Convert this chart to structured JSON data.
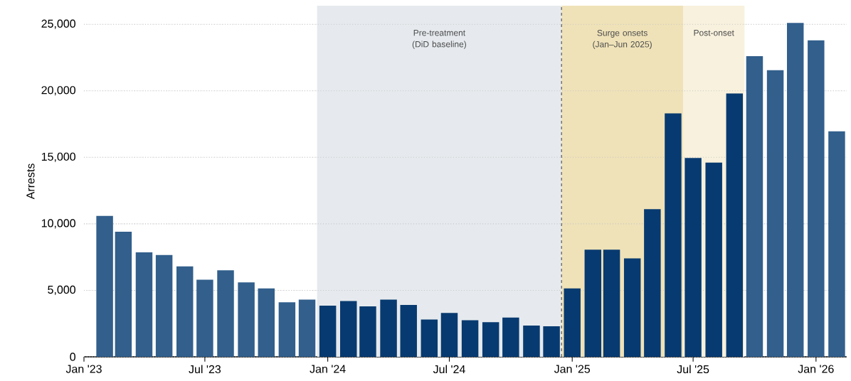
{
  "chart_data": {
    "type": "bar",
    "ylabel": "Arrests",
    "x": [
      "2023-02",
      "2023-03",
      "2023-04",
      "2023-05",
      "2023-06",
      "2023-07",
      "2023-08",
      "2023-09",
      "2023-10",
      "2023-11",
      "2023-12",
      "2024-01",
      "2024-02",
      "2024-03",
      "2024-04",
      "2024-05",
      "2024-06",
      "2024-07",
      "2024-08",
      "2024-09",
      "2024-10",
      "2024-11",
      "2024-12",
      "2025-01",
      "2025-02",
      "2025-03",
      "2025-04",
      "2025-05",
      "2025-06",
      "2025-07",
      "2025-08",
      "2025-09",
      "2025-10",
      "2025-11",
      "2025-12",
      "2026-01",
      "2026-02"
    ],
    "values": [
      10600,
      9400,
      7850,
      7650,
      6800,
      5800,
      6500,
      5600,
      5150,
      4100,
      4300,
      3850,
      4200,
      3800,
      4300,
      3900,
      2800,
      3300,
      2750,
      2600,
      2950,
      2350,
      2300,
      5150,
      8050,
      8050,
      7400,
      11100,
      18300,
      14950,
      14600,
      19800,
      22600,
      21550,
      25100,
      23800,
      16950
    ],
    "colors": [
      "#325f8c",
      "#325f8c",
      "#325f8c",
      "#325f8c",
      "#325f8c",
      "#325f8c",
      "#325f8c",
      "#325f8c",
      "#325f8c",
      "#325f8c",
      "#325f8c",
      "#073a70",
      "#073a70",
      "#073a70",
      "#073a70",
      "#073a70",
      "#073a70",
      "#073a70",
      "#073a70",
      "#073a70",
      "#073a70",
      "#073a70",
      "#073a70",
      "#073a70",
      "#073a70",
      "#073a70",
      "#073a70",
      "#073a70",
      "#073a70",
      "#073a70",
      "#073a70",
      "#073a70",
      "#325f8c",
      "#325f8c",
      "#325f8c",
      "#325f8c",
      "#325f8c"
    ],
    "xlim": [
      "2023-01-01",
      "2026-02-16"
    ],
    "ylim": [
      0,
      26400
    ],
    "xticks": [
      {
        "value": "2023-01-01",
        "label": "Jan '23"
      },
      {
        "value": "2023-07-01",
        "label": "Jul '23"
      },
      {
        "value": "2024-01-01",
        "label": "Jan '24"
      },
      {
        "value": "2024-07-01",
        "label": "Jul '24"
      },
      {
        "value": "2025-01-01",
        "label": "Jan '25"
      },
      {
        "value": "2025-07-01",
        "label": "Jul '25"
      },
      {
        "value": "2026-01-01",
        "label": "Jan '26"
      }
    ],
    "yticks": [
      0,
      {
        "value": 5000,
        "label": "5,000"
      },
      {
        "value": 10000,
        "label": "10,000"
      },
      {
        "value": 15000,
        "label": "15,000"
      },
      {
        "value": 20000,
        "label": "20,000"
      },
      {
        "value": 25000,
        "label": "25,000"
      }
    ],
    "grid": "y",
    "bands": [
      {
        "axis": "x",
        "from": "2023-12-16",
        "to": "2024-12-16",
        "label": "Pre-treatment (DiD baseline)",
        "color": "#e6eaee"
      },
      {
        "axis": "x",
        "from": "2024-12-16",
        "to": "2025-06-16",
        "label": "Surge onsets (Jan–Jun 2025)",
        "color": "#efe2b8"
      },
      {
        "axis": "x",
        "from": "2025-06-16",
        "to": "2025-09-16",
        "label": "Post-onset",
        "color": "#f8f1dd"
      }
    ],
    "ref_lines": [
      {
        "axis": "x",
        "value": "2024-12-16",
        "line_style": "dashed",
        "color": "#666666"
      }
    ]
  }
}
